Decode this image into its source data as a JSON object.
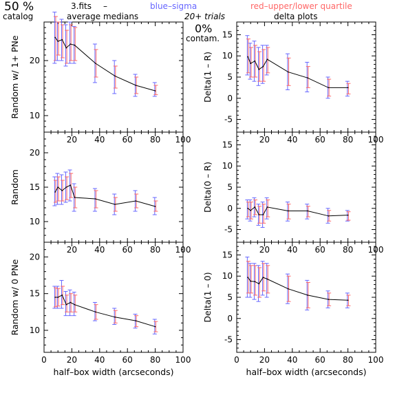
{
  "header": {
    "percent": "50 %",
    "catalog": "catalog",
    "file": "3.fits",
    "dash": "–",
    "avg_medians": "average medians",
    "blue_sigma": "blue–sigma",
    "red_quartile": "red–upper/lower quartile",
    "trials": "20+ trials",
    "delta_plots": "delta plots",
    "contam_percent": "0%",
    "contam_label": "contam."
  },
  "colors": {
    "blue": "#6666ff",
    "red": "#ff6666",
    "median_line": "#000000",
    "axes": "#000000"
  },
  "chart_data": [
    {
      "type": "line",
      "id": "p1",
      "ylabel": "Random w/ 1+ PNe",
      "xlabel": "",
      "xlim": [
        0,
        100
      ],
      "ylim": [
        7,
        27
      ],
      "xticks": [
        0,
        20,
        40,
        60,
        80,
        100
      ],
      "yticks": [
        10,
        20
      ],
      "x": [
        8,
        10,
        13,
        16,
        19,
        22,
        37,
        51,
        66,
        80
      ],
      "y": [
        24.2,
        23.5,
        23.8,
        22.3,
        23.0,
        22.8,
        19.5,
        17.2,
        15.5,
        14.5
      ],
      "sigma": [
        [
          19.5,
          28.8
        ],
        [
          20.0,
          27.0
        ],
        [
          20.0,
          27.5
        ],
        [
          19.0,
          26.5
        ],
        [
          19.5,
          27.0
        ],
        [
          19.5,
          26.2
        ],
        [
          16.0,
          23.0
        ],
        [
          14.0,
          20.0
        ],
        [
          13.5,
          17.5
        ],
        [
          13.5,
          16.0
        ]
      ],
      "quartile": [
        [
          20.0,
          28.0
        ],
        [
          21.0,
          27.0
        ],
        [
          20.5,
          26.5
        ],
        [
          19.5,
          25.5
        ],
        [
          20.0,
          26.5
        ],
        [
          20.0,
          26.0
        ],
        [
          17.0,
          22.0
        ],
        [
          15.0,
          19.0
        ],
        [
          14.0,
          17.0
        ],
        [
          13.8,
          15.5
        ]
      ]
    },
    {
      "type": "line",
      "id": "p2",
      "ylabel": "Delta(1 – R)",
      "xlabel": "",
      "xlim": [
        0,
        100
      ],
      "ylim": [
        -8,
        18
      ],
      "xticks": [
        0,
        20,
        40,
        60,
        80,
        100
      ],
      "yticks": [
        -5,
        0,
        5,
        10,
        15
      ],
      "x": [
        8,
        10,
        13,
        16,
        19,
        22,
        37,
        51,
        66,
        80
      ],
      "y": [
        9.8,
        8.2,
        8.8,
        6.8,
        7.5,
        9.2,
        6.2,
        4.8,
        2.5,
        2.5
      ],
      "sigma": [
        [
          5.5,
          14.8
        ],
        [
          4.5,
          13.0
        ],
        [
          4.0,
          13.5
        ],
        [
          3.0,
          12.0
        ],
        [
          3.5,
          12.5
        ],
        [
          5.5,
          12.5
        ],
        [
          2.0,
          10.5
        ],
        [
          1.5,
          8.5
        ],
        [
          0.0,
          5.0
        ],
        [
          0.5,
          4.0
        ]
      ],
      "quartile": [
        [
          6.0,
          14.0
        ],
        [
          5.0,
          12.0
        ],
        [
          5.0,
          12.5
        ],
        [
          4.0,
          11.0
        ],
        [
          4.0,
          11.5
        ],
        [
          6.0,
          12.0
        ],
        [
          3.0,
          9.5
        ],
        [
          2.5,
          7.5
        ],
        [
          0.5,
          4.5
        ],
        [
          1.0,
          3.5
        ]
      ]
    },
    {
      "type": "line",
      "id": "p3",
      "ylabel": "Random",
      "xlabel": "",
      "xlim": [
        0,
        100
      ],
      "ylim": [
        7,
        23
      ],
      "xticks": [
        0,
        20,
        40,
        60,
        80,
        100
      ],
      "yticks": [
        10,
        15,
        20
      ],
      "x": [
        8,
        10,
        13,
        16,
        19,
        22,
        37,
        51,
        66,
        80
      ],
      "y": [
        14.3,
        15.0,
        14.5,
        15.0,
        15.3,
        13.5,
        13.3,
        12.5,
        13.0,
        12.2
      ],
      "sigma": [
        [
          12.3,
          16.5
        ],
        [
          12.5,
          17.0
        ],
        [
          12.5,
          16.8
        ],
        [
          12.8,
          17.2
        ],
        [
          13.0,
          17.5
        ],
        [
          11.5,
          15.5
        ],
        [
          11.5,
          14.8
        ],
        [
          11.0,
          14.0
        ],
        [
          11.5,
          14.5
        ],
        [
          11.0,
          13.5
        ]
      ],
      "quartile": [
        [
          12.8,
          16.0
        ],
        [
          13.0,
          16.5
        ],
        [
          13.0,
          16.0
        ],
        [
          13.2,
          16.5
        ],
        [
          13.5,
          17.0
        ],
        [
          12.0,
          15.0
        ],
        [
          12.0,
          14.5
        ],
        [
          11.5,
          13.5
        ],
        [
          12.0,
          14.0
        ],
        [
          11.5,
          13.0
        ]
      ]
    },
    {
      "type": "line",
      "id": "p4",
      "ylabel": "Delta(0 – R)",
      "xlabel": "",
      "xlim": [
        0,
        100
      ],
      "ylim": [
        -8,
        18
      ],
      "xticks": [
        0,
        20,
        40,
        60,
        80,
        100
      ],
      "yticks": [
        -5,
        0,
        5,
        10,
        15
      ],
      "x": [
        8,
        10,
        13,
        16,
        19,
        22,
        37,
        51,
        66,
        80
      ],
      "y": [
        0.0,
        -0.5,
        0.3,
        -1.5,
        -1.5,
        0.3,
        -0.6,
        -0.6,
        -1.8,
        -1.6
      ],
      "sigma": [
        [
          -2.5,
          2.0
        ],
        [
          -3.0,
          2.0
        ],
        [
          -2.0,
          2.5
        ],
        [
          -4.0,
          1.0
        ],
        [
          -4.5,
          1.5
        ],
        [
          -2.5,
          2.5
        ],
        [
          -3.0,
          1.5
        ],
        [
          -2.5,
          1.0
        ],
        [
          -3.5,
          0.0
        ],
        [
          -3.0,
          -0.5
        ]
      ],
      "quartile": [
        [
          -2.0,
          1.5
        ],
        [
          -2.5,
          1.5
        ],
        [
          -1.5,
          2.0
        ],
        [
          -3.5,
          0.5
        ],
        [
          -3.5,
          1.0
        ],
        [
          -2.0,
          2.0
        ],
        [
          -2.5,
          1.0
        ],
        [
          -2.0,
          0.5
        ],
        [
          -3.0,
          -0.5
        ],
        [
          -2.8,
          -0.8
        ]
      ]
    },
    {
      "type": "line",
      "id": "p5",
      "ylabel": "Random w/ 0 PNe",
      "xlabel": "half–box width (arcseconds)",
      "xlim": [
        0,
        100
      ],
      "ylim": [
        7,
        22
      ],
      "xticks": [
        0,
        20,
        40,
        60,
        80,
        100
      ],
      "yticks": [
        10,
        15,
        20
      ],
      "x": [
        8,
        10,
        13,
        16,
        19,
        22,
        37,
        51,
        66,
        80
      ],
      "y": [
        14.5,
        14.5,
        14.8,
        13.5,
        13.8,
        13.5,
        12.5,
        11.8,
        11.3,
        10.5
      ],
      "sigma": [
        [
          13.0,
          16.0
        ],
        [
          13.0,
          16.0
        ],
        [
          13.0,
          16.8
        ],
        [
          12.0,
          15.3
        ],
        [
          12.0,
          15.5
        ],
        [
          12.0,
          15.2
        ],
        [
          11.3,
          13.8
        ],
        [
          10.8,
          13.0
        ],
        [
          10.3,
          12.2
        ],
        [
          9.5,
          11.5
        ]
      ],
      "quartile": [
        [
          13.2,
          15.8
        ],
        [
          13.3,
          15.7
        ],
        [
          13.5,
          16.0
        ],
        [
          12.5,
          14.8
        ],
        [
          12.5,
          15.0
        ],
        [
          12.5,
          14.8
        ],
        [
          11.5,
          13.5
        ],
        [
          11.0,
          12.7
        ],
        [
          10.5,
          12.0
        ],
        [
          9.8,
          11.2
        ]
      ]
    },
    {
      "type": "line",
      "id": "p6",
      "ylabel": "Delta(1 – 0)",
      "xlabel": "half–box width (arcseconds)",
      "xlim": [
        0,
        100
      ],
      "ylim": [
        -8,
        18
      ],
      "xticks": [
        0,
        20,
        40,
        60,
        80,
        100
      ],
      "yticks": [
        -5,
        0,
        5,
        10,
        15
      ],
      "x": [
        8,
        10,
        13,
        16,
        19,
        22,
        37,
        51,
        66,
        80
      ],
      "y": [
        9.7,
        8.8,
        8.7,
        8.2,
        9.7,
        9.3,
        7.0,
        5.5,
        4.5,
        4.3
      ],
      "sigma": [
        [
          5.0,
          14.5
        ],
        [
          5.0,
          13.0
        ],
        [
          4.5,
          13.0
        ],
        [
          4.0,
          12.5
        ],
        [
          5.5,
          13.5
        ],
        [
          5.0,
          13.0
        ],
        [
          3.5,
          10.5
        ],
        [
          2.0,
          9.0
        ],
        [
          2.5,
          6.5
        ],
        [
          2.5,
          6.0
        ]
      ],
      "quartile": [
        [
          6.0,
          13.5
        ],
        [
          6.0,
          12.5
        ],
        [
          5.5,
          12.5
        ],
        [
          5.0,
          12.0
        ],
        [
          6.5,
          13.0
        ],
        [
          6.0,
          12.5
        ],
        [
          4.0,
          10.0
        ],
        [
          2.5,
          8.5
        ],
        [
          3.0,
          6.0
        ],
        [
          3.0,
          5.5
        ]
      ]
    }
  ]
}
